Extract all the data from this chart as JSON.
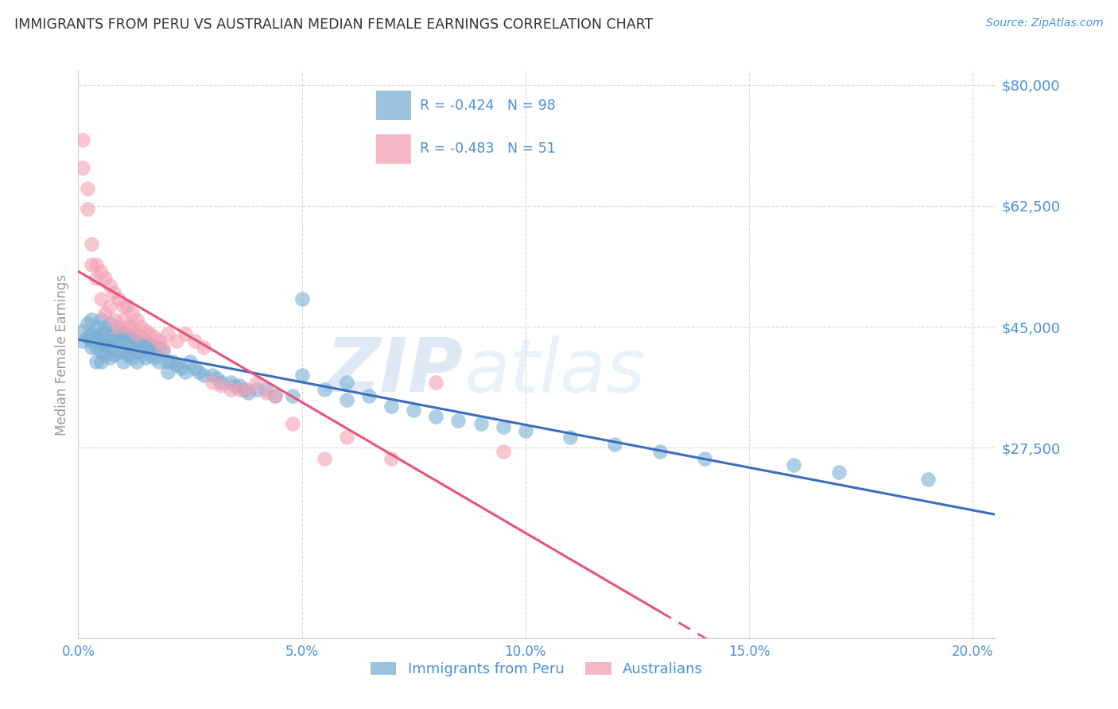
{
  "title": "IMMIGRANTS FROM PERU VS AUSTRALIAN MEDIAN FEMALE EARNINGS CORRELATION CHART",
  "source": "Source: ZipAtlas.com",
  "ylabel": "Median Female Earnings",
  "xlabel_ticks": [
    "0.0%",
    "5.0%",
    "10.0%",
    "15.0%",
    "20.0%"
  ],
  "xlabel_vals": [
    0.0,
    0.05,
    0.1,
    0.15,
    0.2
  ],
  "ylim": [
    0,
    82000
  ],
  "xlim": [
    0.0,
    0.205
  ],
  "blue_color": "#7bafd4",
  "pink_color": "#f4a0b5",
  "blue_line_color": "#3a6ebc",
  "pink_line_color": "#e8537a",
  "axis_label_color": "#4a90d9",
  "title_color": "#333333",
  "watermark_zip": "ZIP",
  "watermark_atlas": "atlas",
  "legend1_label": "Immigrants from Peru",
  "legend2_label": "Australians",
  "R_blue": -0.424,
  "N_blue": 98,
  "R_pink": -0.483,
  "N_pink": 51,
  "blue_scatter_x": [
    0.001,
    0.001,
    0.002,
    0.002,
    0.003,
    0.003,
    0.003,
    0.003,
    0.004,
    0.004,
    0.004,
    0.004,
    0.005,
    0.005,
    0.005,
    0.005,
    0.005,
    0.006,
    0.006,
    0.006,
    0.006,
    0.007,
    0.007,
    0.007,
    0.007,
    0.008,
    0.008,
    0.008,
    0.009,
    0.009,
    0.009,
    0.01,
    0.01,
    0.01,
    0.01,
    0.011,
    0.011,
    0.011,
    0.012,
    0.012,
    0.012,
    0.013,
    0.013,
    0.013,
    0.014,
    0.014,
    0.015,
    0.015,
    0.015,
    0.016,
    0.016,
    0.017,
    0.017,
    0.018,
    0.018,
    0.019,
    0.02,
    0.02,
    0.021,
    0.022,
    0.023,
    0.024,
    0.025,
    0.026,
    0.027,
    0.028,
    0.03,
    0.031,
    0.032,
    0.034,
    0.035,
    0.036,
    0.037,
    0.038,
    0.04,
    0.042,
    0.044,
    0.048,
    0.05,
    0.055,
    0.06,
    0.065,
    0.07,
    0.075,
    0.08,
    0.085,
    0.09,
    0.095,
    0.1,
    0.11,
    0.12,
    0.13,
    0.14,
    0.16,
    0.17,
    0.19,
    0.05,
    0.06
  ],
  "blue_scatter_y": [
    44500,
    43000,
    45500,
    43500,
    46000,
    44000,
    42000,
    43000,
    45000,
    43500,
    42000,
    40000,
    46000,
    44000,
    43000,
    41500,
    40000,
    45000,
    44000,
    42500,
    41000,
    45500,
    43000,
    42000,
    40500,
    44000,
    43000,
    41000,
    44500,
    43000,
    41500,
    44000,
    43000,
    41500,
    40000,
    44000,
    42500,
    41000,
    43500,
    42000,
    40500,
    43000,
    41500,
    40000,
    43000,
    41500,
    43000,
    42000,
    40500,
    42500,
    41000,
    42000,
    40500,
    42000,
    40000,
    41500,
    40000,
    38500,
    40000,
    39500,
    39000,
    38500,
    40000,
    39000,
    38500,
    38000,
    38000,
    37500,
    37000,
    37000,
    36500,
    36500,
    36000,
    35500,
    36000,
    36000,
    35000,
    35000,
    49000,
    36000,
    37000,
    35000,
    33500,
    33000,
    32000,
    31500,
    31000,
    30500,
    30000,
    29000,
    28000,
    27000,
    26000,
    25000,
    24000,
    23000,
    38000,
    34500
  ],
  "pink_scatter_x": [
    0.001,
    0.001,
    0.002,
    0.002,
    0.003,
    0.003,
    0.004,
    0.004,
    0.005,
    0.005,
    0.006,
    0.006,
    0.007,
    0.007,
    0.008,
    0.008,
    0.009,
    0.009,
    0.01,
    0.01,
    0.011,
    0.011,
    0.012,
    0.012,
    0.013,
    0.013,
    0.014,
    0.015,
    0.016,
    0.017,
    0.018,
    0.019,
    0.02,
    0.022,
    0.024,
    0.026,
    0.028,
    0.03,
    0.032,
    0.034,
    0.036,
    0.038,
    0.04,
    0.042,
    0.044,
    0.048,
    0.055,
    0.06,
    0.07,
    0.08,
    0.095
  ],
  "pink_scatter_y": [
    72000,
    68000,
    65000,
    62000,
    57000,
    54000,
    54000,
    52000,
    53000,
    49000,
    52000,
    47000,
    51000,
    48000,
    50000,
    46000,
    49000,
    45000,
    48000,
    46000,
    48000,
    45000,
    47000,
    45000,
    46000,
    44000,
    45000,
    44500,
    44000,
    43500,
    43000,
    42000,
    44000,
    43000,
    44000,
    43000,
    42000,
    37000,
    36500,
    36000,
    36000,
    36000,
    37000,
    35500,
    35000,
    31000,
    26000,
    29000,
    26000,
    37000,
    27000
  ],
  "grid_color": "#d0d0d0",
  "background_color": "#ffffff",
  "blue_line_x0": 0.0,
  "blue_line_x1": 0.205,
  "pink_line_x0": 0.0,
  "pink_line_x1": 0.13
}
